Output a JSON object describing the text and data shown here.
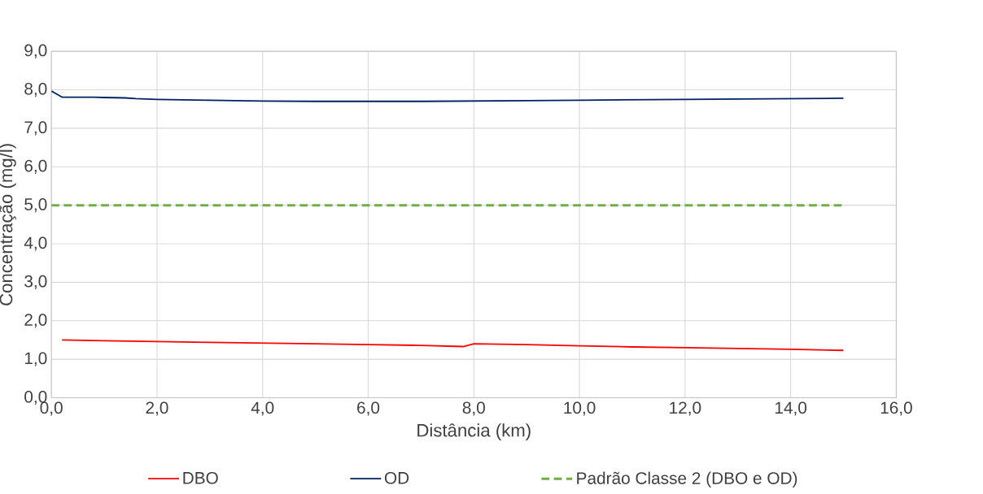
{
  "chart_data": {
    "type": "line",
    "xlabel": "Distância (km)",
    "ylabel": "Concentração (mg/l)",
    "xlim": [
      0,
      16
    ],
    "ylim": [
      0,
      9
    ],
    "xticks": [
      {
        "value": 0,
        "label": "0,0"
      },
      {
        "value": 2,
        "label": "2,0"
      },
      {
        "value": 4,
        "label": "4,0"
      },
      {
        "value": 6,
        "label": "6,0"
      },
      {
        "value": 8,
        "label": "8,0"
      },
      {
        "value": 10,
        "label": "10,0"
      },
      {
        "value": 12,
        "label": "12,0"
      },
      {
        "value": 14,
        "label": "14,0"
      },
      {
        "value": 16,
        "label": "16,0"
      }
    ],
    "yticks": [
      {
        "value": 0,
        "label": "0,0"
      },
      {
        "value": 1,
        "label": "1,0"
      },
      {
        "value": 2,
        "label": "2,0"
      },
      {
        "value": 3,
        "label": "3,0"
      },
      {
        "value": 4,
        "label": "4,0"
      },
      {
        "value": 5,
        "label": "5,0"
      },
      {
        "value": 6,
        "label": "6,0"
      },
      {
        "value": 7,
        "label": "7,0"
      },
      {
        "value": 8,
        "label": "8,0"
      },
      {
        "value": 9,
        "label": "9,0"
      }
    ],
    "grid": true,
    "legend": "bottom",
    "series": [
      {
        "name": "DBO",
        "color": "#ff0000",
        "x": [
          0.2,
          1,
          2,
          3,
          4,
          5,
          6,
          7,
          7.8,
          8,
          9,
          10,
          11,
          12,
          13,
          14,
          15
        ],
        "values": [
          1.5,
          1.48,
          1.46,
          1.44,
          1.42,
          1.4,
          1.38,
          1.36,
          1.33,
          1.4,
          1.38,
          1.35,
          1.32,
          1.3,
          1.28,
          1.26,
          1.23
        ]
      },
      {
        "name": "OD",
        "color": "#002060",
        "x": [
          0,
          0.2,
          0.8,
          1,
          1.4,
          1.6,
          2,
          3,
          4,
          5,
          6,
          7,
          8,
          9,
          10,
          11,
          12,
          13,
          14,
          15
        ],
        "values": [
          7.97,
          7.81,
          7.81,
          7.8,
          7.79,
          7.77,
          7.75,
          7.73,
          7.71,
          7.7,
          7.7,
          7.7,
          7.71,
          7.72,
          7.73,
          7.74,
          7.75,
          7.76,
          7.77,
          7.78
        ]
      },
      {
        "name": "Padrão Classe 2 (DBO e OD)",
        "color": "#70ad47",
        "line_style": "dashed",
        "x": [
          0,
          15
        ],
        "values": [
          5,
          5
        ]
      }
    ]
  }
}
